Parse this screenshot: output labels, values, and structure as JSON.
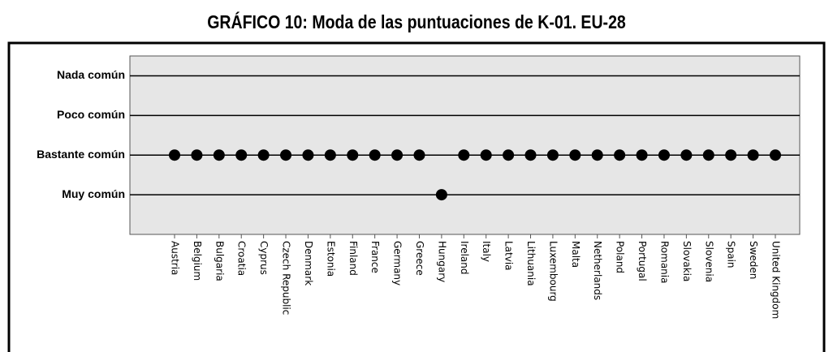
{
  "chart_data": {
    "type": "dot",
    "title": "GRÁFICO 10: Moda de las puntuaciones de K-01. EU-28",
    "categories": [
      "Austria",
      "Belgium",
      "Bulgaria",
      "Croatia",
      "Cyprus",
      "Czech Republic",
      "Denmark",
      "Estonia",
      "Finland",
      "France",
      "Germany",
      "Greece",
      "Hungary",
      "Ireland",
      "Italy",
      "Latvia",
      "Lithuania",
      "Luxembourg",
      "Malta",
      "Netherlands",
      "Poland",
      "Portugal",
      "Romania",
      "Slovakia",
      "Slovenia",
      "Spain",
      "Sweden",
      "United Kingdom"
    ],
    "values": [
      2,
      2,
      2,
      2,
      2,
      2,
      2,
      2,
      2,
      2,
      2,
      2,
      1,
      2,
      2,
      2,
      2,
      2,
      2,
      2,
      2,
      2,
      2,
      2,
      2,
      2,
      2,
      2
    ],
    "color": "#000000",
    "ylim": [
      0,
      4.5
    ],
    "yticks": [
      {
        "value": 1,
        "label": "Muy común"
      },
      {
        "value": 2,
        "label": "Bastante común"
      },
      {
        "value": 3,
        "label": "Poco común"
      },
      {
        "value": 4,
        "label": "Nada común"
      }
    ],
    "grid": true
  }
}
